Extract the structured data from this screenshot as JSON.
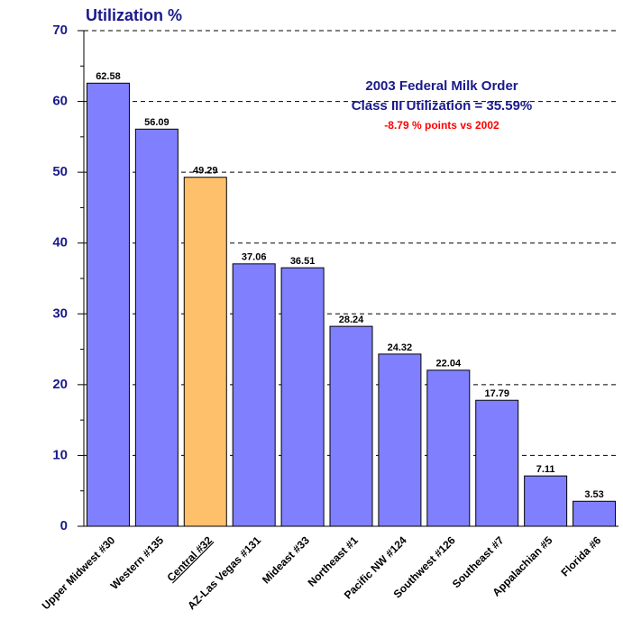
{
  "chart_data": {
    "type": "bar",
    "title": "Utilization %",
    "annotations": [
      {
        "text": "2003 Federal Milk Order",
        "color": "#1a1a8c"
      },
      {
        "text": "Class III Utilization = 35.59%",
        "color": "#1a1a8c"
      },
      {
        "text": "-8.79 % points vs 2002",
        "color": "#ff0000"
      }
    ],
    "categories": [
      "Upper Midwest #30",
      "Western #135",
      "Central #32",
      "AZ-Las Vegas #131",
      "Mideast #33",
      "Northeast #1",
      "Pacific NW #124",
      "Southwest #126",
      "Southeast #7",
      "Appalachian #5",
      "Florida #6"
    ],
    "values": [
      62.58,
      56.09,
      49.29,
      37.06,
      36.51,
      28.24,
      24.32,
      22.04,
      17.79,
      7.11,
      3.53
    ],
    "colors": [
      "#8080ff",
      "#8080ff",
      "#ffc06b",
      "#8080ff",
      "#8080ff",
      "#8080ff",
      "#8080ff",
      "#8080ff",
      "#8080ff",
      "#8080ff",
      "#8080ff"
    ],
    "underlined_label": 2,
    "ylim": [
      0,
      70
    ],
    "yticks": [
      0,
      10,
      20,
      30,
      40,
      50,
      60,
      70
    ],
    "minor_yticks": [
      5,
      15,
      25,
      35,
      45,
      55,
      65
    ],
    "grid": true
  }
}
